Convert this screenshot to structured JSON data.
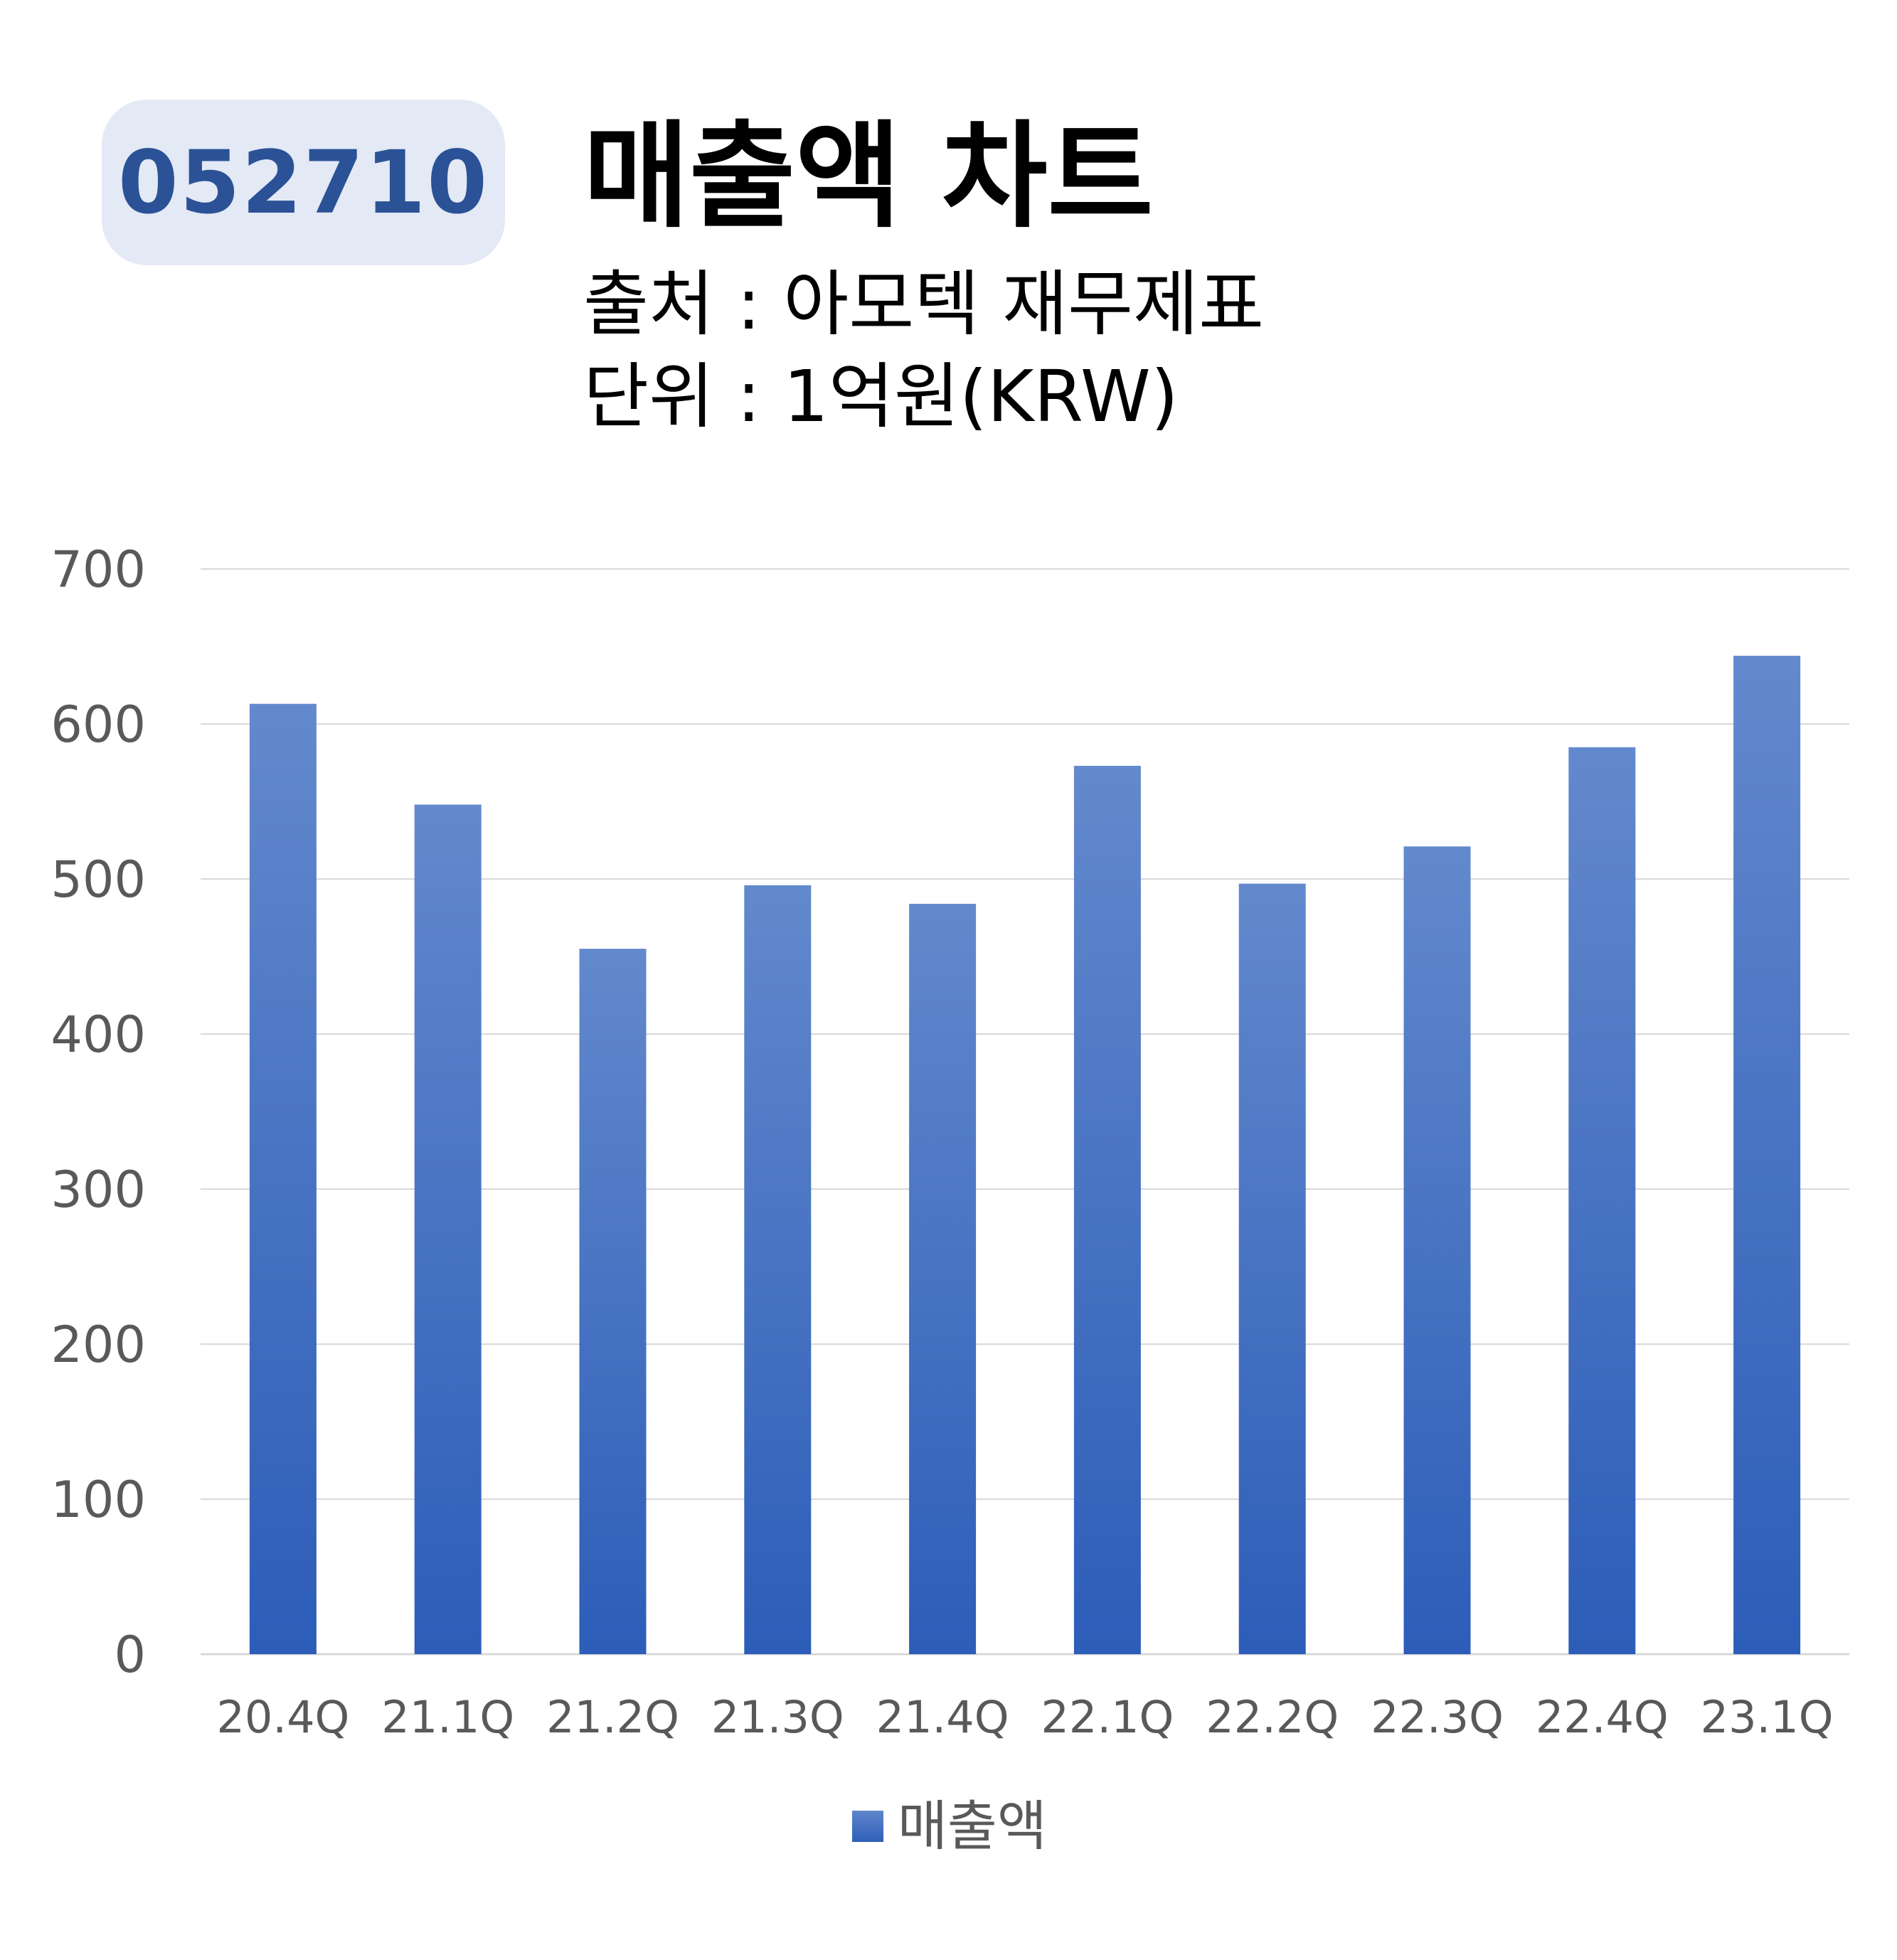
{
  "header": {
    "ticker": "052710",
    "title": "매출액 차트",
    "source": "출처 : 아모텍 재무제표",
    "unit": "단위 : 1억원(KRW)"
  },
  "colors": {
    "badge_bg": "#e3e9f5",
    "badge_text": "#2b5296",
    "bar_top": "#6389cd",
    "bar_bottom": "#2c5db8",
    "gridline": "#d9d9d9",
    "tick_text": "#595959"
  },
  "chart_data": {
    "type": "bar",
    "categories": [
      "20.4Q",
      "21.1Q",
      "21.2Q",
      "21.3Q",
      "21.4Q",
      "22.1Q",
      "22.2Q",
      "22.3Q",
      "22.4Q",
      "23.1Q"
    ],
    "series": [
      {
        "name": "매출액",
        "values": [
          613,
          548,
          455,
          496,
          484,
          573,
          497,
          521,
          585,
          644
        ]
      }
    ],
    "yticks": [
      "0",
      "100",
      "200",
      "300",
      "400",
      "500",
      "600",
      "700"
    ],
    "ylim": [
      0,
      700
    ],
    "grid": true,
    "legend": "bottom-center"
  }
}
